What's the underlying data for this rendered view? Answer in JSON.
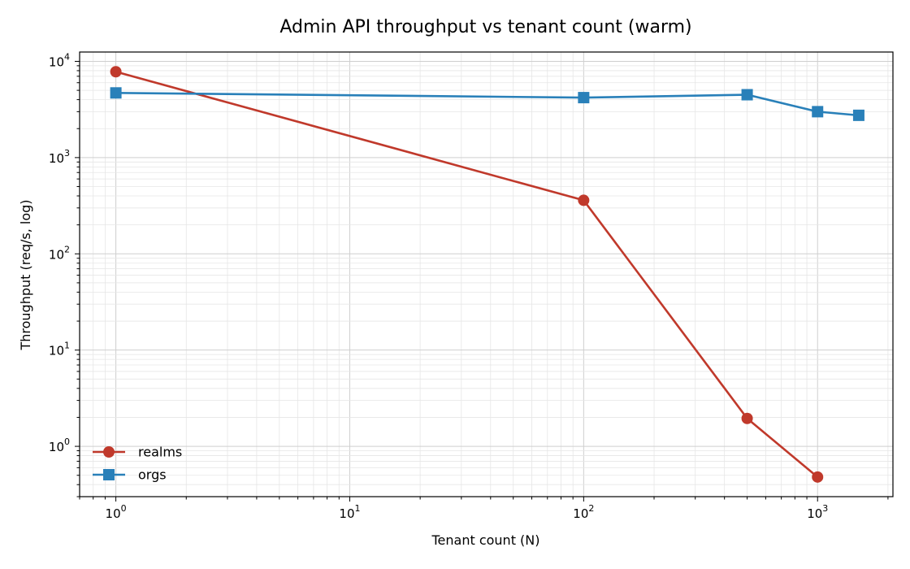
{
  "chart_data": {
    "type": "line",
    "title": "Admin API throughput vs tenant count (warm)",
    "xlabel": "Tenant count (N)",
    "ylabel": "Throughput (req/s, log)",
    "xscale": "log",
    "yscale": "log",
    "xlim": [
      0.7,
      2100
    ],
    "ylim": [
      0.3,
      12500
    ],
    "x_ticks": [
      {
        "value": 1,
        "base": "10",
        "exp": "0"
      },
      {
        "value": 10,
        "base": "10",
        "exp": "1"
      },
      {
        "value": 100,
        "base": "10",
        "exp": "2"
      },
      {
        "value": 1000,
        "base": "10",
        "exp": "3"
      }
    ],
    "y_ticks": [
      {
        "value": 1,
        "base": "10",
        "exp": "0"
      },
      {
        "value": 10,
        "base": "10",
        "exp": "1"
      },
      {
        "value": 100,
        "base": "10",
        "exp": "2"
      },
      {
        "value": 1000,
        "base": "10",
        "exp": "3"
      },
      {
        "value": 10000,
        "base": "10",
        "exp": "4"
      }
    ],
    "grid": true,
    "legend_position": "lower-left",
    "series": [
      {
        "name": "realms",
        "color": "#c0392b",
        "marker": "circle",
        "x": [
          1,
          100,
          500,
          1000
        ],
        "y": [
          7800,
          360,
          1.95,
          0.48
        ]
      },
      {
        "name": "orgs",
        "color": "#2980b9",
        "marker": "square",
        "x": [
          1,
          100,
          500,
          1000,
          1500
        ],
        "y": [
          4700,
          4200,
          4500,
          3000,
          2750
        ]
      }
    ]
  }
}
